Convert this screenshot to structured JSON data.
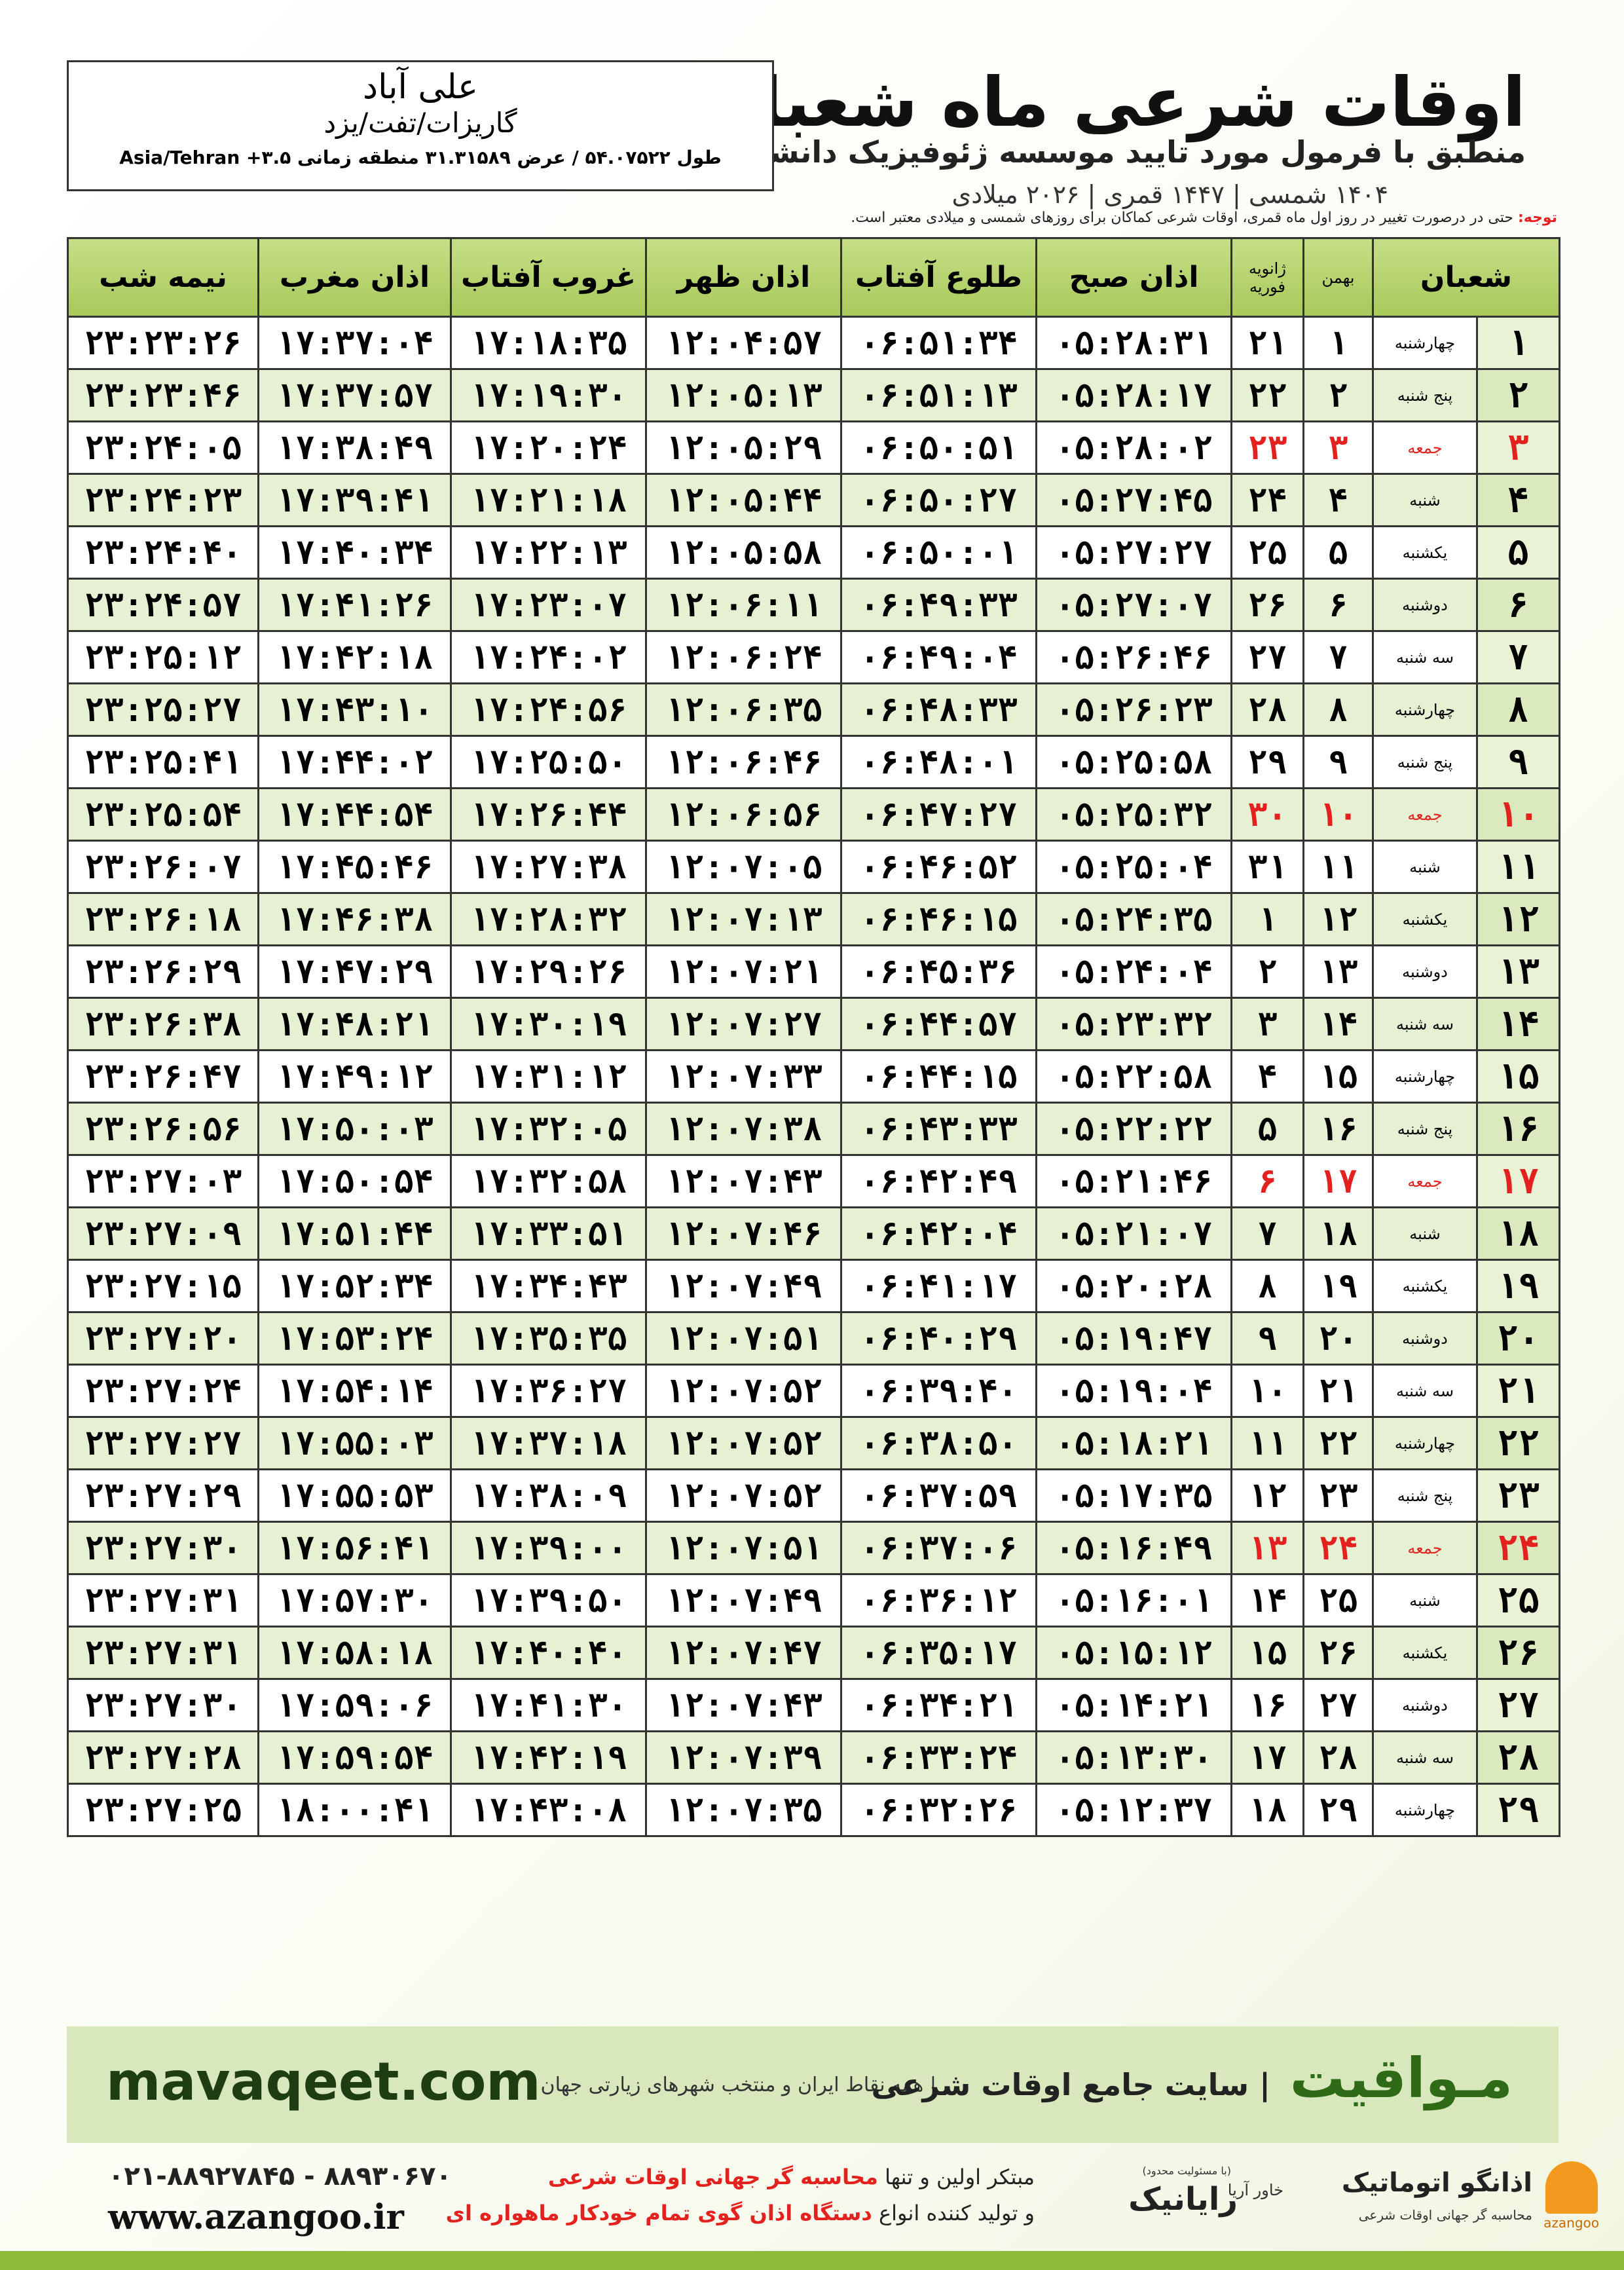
{
  "header": {
    "title": "اوقات شرعی ماه شعبان",
    "subtitle": "منطبق با فرمول مورد تایید موسسه ژئوفیزیک دانشگاه تهران",
    "dates": "۱۴۰۴ شمسی | ۱۴۴۷ قمری | ۲۰۲۶ میلادی"
  },
  "location": {
    "name": "علی آباد",
    "region": "گاریزات/تفت/یزد",
    "coords": "طول ۵۴.۰۷۵۲۲ / عرض ۳۱.۳۱۵۸۹ منطقه زمانی ۳.۵+ Asia/Tehran"
  },
  "note": {
    "label": "توجه:",
    "text": "حتی در درصورت تغییر در روز اول ماه قمری، اوقات شرعی کماکان برای روزهای شمسی و میلادی معتبر است."
  },
  "table": {
    "headers": {
      "month": "شعبان",
      "bahman": "بهمن",
      "gregorian": [
        "ژانویه",
        "فوریه"
      ],
      "times": [
        "اذان صبح",
        "طلوع آفتاب",
        "اذان ظهر",
        "غروب آفتاب",
        "اذان مغرب",
        "نیمه شب"
      ]
    },
    "holiday_color": "#e3221f",
    "rows": [
      {
        "day": "۱",
        "weekday": "چهارشنبه",
        "bahman": "۱",
        "gregorian": "۲۱",
        "times": [
          "۰۵:۲۸:۳۱",
          "۰۶:۵۱:۳۴",
          "۱۲:۰۴:۵۷",
          "۱۷:۱۸:۳۵",
          "۱۷:۳۷:۰۴",
          "۲۳:۲۳:۲۶"
        ]
      },
      {
        "day": "۲",
        "weekday": "پنج شنبه",
        "bahman": "۲",
        "gregorian": "۲۲",
        "times": [
          "۰۵:۲۸:۱۷",
          "۰۶:۵۱:۱۳",
          "۱۲:۰۵:۱۳",
          "۱۷:۱۹:۳۰",
          "۱۷:۳۷:۵۷",
          "۲۳:۲۳:۴۶"
        ]
      },
      {
        "day": "۳",
        "weekday": "جمعه",
        "bahman": "۳",
        "gregorian": "۲۳",
        "holiday": true,
        "times": [
          "۰۵:۲۸:۰۲",
          "۰۶:۵۰:۵۱",
          "۱۲:۰۵:۲۹",
          "۱۷:۲۰:۲۴",
          "۱۷:۳۸:۴۹",
          "۲۳:۲۴:۰۵"
        ]
      },
      {
        "day": "۴",
        "weekday": "شنبه",
        "bahman": "۴",
        "gregorian": "۲۴",
        "times": [
          "۰۵:۲۷:۴۵",
          "۰۶:۵۰:۲۷",
          "۱۲:۰۵:۴۴",
          "۱۷:۲۱:۱۸",
          "۱۷:۳۹:۴۱",
          "۲۳:۲۴:۲۳"
        ]
      },
      {
        "day": "۵",
        "weekday": "یکشنبه",
        "bahman": "۵",
        "gregorian": "۲۵",
        "times": [
          "۰۵:۲۷:۲۷",
          "۰۶:۵۰:۰۱",
          "۱۲:۰۵:۵۸",
          "۱۷:۲۲:۱۳",
          "۱۷:۴۰:۳۴",
          "۲۳:۲۴:۴۰"
        ]
      },
      {
        "day": "۶",
        "weekday": "دوشنبه",
        "bahman": "۶",
        "gregorian": "۲۶",
        "times": [
          "۰۵:۲۷:۰۷",
          "۰۶:۴۹:۳۳",
          "۱۲:۰۶:۱۱",
          "۱۷:۲۳:۰۷",
          "۱۷:۴۱:۲۶",
          "۲۳:۲۴:۵۷"
        ]
      },
      {
        "day": "۷",
        "weekday": "سه شنبه",
        "bahman": "۷",
        "gregorian": "۲۷",
        "times": [
          "۰۵:۲۶:۴۶",
          "۰۶:۴۹:۰۴",
          "۱۲:۰۶:۲۴",
          "۱۷:۲۴:۰۲",
          "۱۷:۴۲:۱۸",
          "۲۳:۲۵:۱۲"
        ]
      },
      {
        "day": "۸",
        "weekday": "چهارشنبه",
        "bahman": "۸",
        "gregorian": "۲۸",
        "times": [
          "۰۵:۲۶:۲۳",
          "۰۶:۴۸:۳۳",
          "۱۲:۰۶:۳۵",
          "۱۷:۲۴:۵۶",
          "۱۷:۴۳:۱۰",
          "۲۳:۲۵:۲۷"
        ]
      },
      {
        "day": "۹",
        "weekday": "پنج شنبه",
        "bahman": "۹",
        "gregorian": "۲۹",
        "times": [
          "۰۵:۲۵:۵۸",
          "۰۶:۴۸:۰۱",
          "۱۲:۰۶:۴۶",
          "۱۷:۲۵:۵۰",
          "۱۷:۴۴:۰۲",
          "۲۳:۲۵:۴۱"
        ]
      },
      {
        "day": "۱۰",
        "weekday": "جمعه",
        "bahman": "۱۰",
        "gregorian": "۳۰",
        "holiday": true,
        "times": [
          "۰۵:۲۵:۳۲",
          "۰۶:۴۷:۲۷",
          "۱۲:۰۶:۵۶",
          "۱۷:۲۶:۴۴",
          "۱۷:۴۴:۵۴",
          "۲۳:۲۵:۵۴"
        ]
      },
      {
        "day": "۱۱",
        "weekday": "شنبه",
        "bahman": "۱۱",
        "gregorian": "۳۱",
        "times": [
          "۰۵:۲۵:۰۴",
          "۰۶:۴۶:۵۲",
          "۱۲:۰۷:۰۵",
          "۱۷:۲۷:۳۸",
          "۱۷:۴۵:۴۶",
          "۲۳:۲۶:۰۷"
        ]
      },
      {
        "day": "۱۲",
        "weekday": "یکشنبه",
        "bahman": "۱۲",
        "gregorian": "۱",
        "times": [
          "۰۵:۲۴:۳۵",
          "۰۶:۴۶:۱۵",
          "۱۲:۰۷:۱۳",
          "۱۷:۲۸:۳۲",
          "۱۷:۴۶:۳۸",
          "۲۳:۲۶:۱۸"
        ]
      },
      {
        "day": "۱۳",
        "weekday": "دوشنبه",
        "bahman": "۱۳",
        "gregorian": "۲",
        "times": [
          "۰۵:۲۴:۰۴",
          "۰۶:۴۵:۳۶",
          "۱۲:۰۷:۲۱",
          "۱۷:۲۹:۲۶",
          "۱۷:۴۷:۲۹",
          "۲۳:۲۶:۲۹"
        ]
      },
      {
        "day": "۱۴",
        "weekday": "سه شنبه",
        "bahman": "۱۴",
        "gregorian": "۳",
        "times": [
          "۰۵:۲۳:۳۲",
          "۰۶:۴۴:۵۷",
          "۱۲:۰۷:۲۷",
          "۱۷:۳۰:۱۹",
          "۱۷:۴۸:۲۱",
          "۲۳:۲۶:۳۸"
        ]
      },
      {
        "day": "۱۵",
        "weekday": "چهارشنبه",
        "bahman": "۱۵",
        "gregorian": "۴",
        "times": [
          "۰۵:۲۲:۵۸",
          "۰۶:۴۴:۱۵",
          "۱۲:۰۷:۳۳",
          "۱۷:۳۱:۱۲",
          "۱۷:۴۹:۱۲",
          "۲۳:۲۶:۴۷"
        ]
      },
      {
        "day": "۱۶",
        "weekday": "پنج شنبه",
        "bahman": "۱۶",
        "gregorian": "۵",
        "times": [
          "۰۵:۲۲:۲۲",
          "۰۶:۴۳:۳۳",
          "۱۲:۰۷:۳۸",
          "۱۷:۳۲:۰۵",
          "۱۷:۵۰:۰۳",
          "۲۳:۲۶:۵۶"
        ]
      },
      {
        "day": "۱۷",
        "weekday": "جمعه",
        "bahman": "۱۷",
        "gregorian": "۶",
        "holiday": true,
        "times": [
          "۰۵:۲۱:۴۶",
          "۰۶:۴۲:۴۹",
          "۱۲:۰۷:۴۳",
          "۱۷:۳۲:۵۸",
          "۱۷:۵۰:۵۴",
          "۲۳:۲۷:۰۳"
        ]
      },
      {
        "day": "۱۸",
        "weekday": "شنبه",
        "bahman": "۱۸",
        "gregorian": "۷",
        "times": [
          "۰۵:۲۱:۰۷",
          "۰۶:۴۲:۰۴",
          "۱۲:۰۷:۴۶",
          "۱۷:۳۳:۵۱",
          "۱۷:۵۱:۴۴",
          "۲۳:۲۷:۰۹"
        ]
      },
      {
        "day": "۱۹",
        "weekday": "یکشنبه",
        "bahman": "۱۹",
        "gregorian": "۸",
        "times": [
          "۰۵:۲۰:۲۸",
          "۰۶:۴۱:۱۷",
          "۱۲:۰۷:۴۹",
          "۱۷:۳۴:۴۳",
          "۱۷:۵۲:۳۴",
          "۲۳:۲۷:۱۵"
        ]
      },
      {
        "day": "۲۰",
        "weekday": "دوشنبه",
        "bahman": "۲۰",
        "gregorian": "۹",
        "times": [
          "۰۵:۱۹:۴۷",
          "۰۶:۴۰:۲۹",
          "۱۲:۰۷:۵۱",
          "۱۷:۳۵:۳۵",
          "۱۷:۵۳:۲۴",
          "۲۳:۲۷:۲۰"
        ]
      },
      {
        "day": "۲۱",
        "weekday": "سه شنبه",
        "bahman": "۲۱",
        "gregorian": "۱۰",
        "times": [
          "۰۵:۱۹:۰۴",
          "۰۶:۳۹:۴۰",
          "۱۲:۰۷:۵۲",
          "۱۷:۳۶:۲۷",
          "۱۷:۵۴:۱۴",
          "۲۳:۲۷:۲۴"
        ]
      },
      {
        "day": "۲۲",
        "weekday": "چهارشنبه",
        "bahman": "۲۲",
        "gregorian": "۱۱",
        "times": [
          "۰۵:۱۸:۲۱",
          "۰۶:۳۸:۵۰",
          "۱۲:۰۷:۵۲",
          "۱۷:۳۷:۱۸",
          "۱۷:۵۵:۰۳",
          "۲۳:۲۷:۲۷"
        ]
      },
      {
        "day": "۲۳",
        "weekday": "پنج شنبه",
        "bahman": "۲۳",
        "gregorian": "۱۲",
        "times": [
          "۰۵:۱۷:۳۵",
          "۰۶:۳۷:۵۹",
          "۱۲:۰۷:۵۲",
          "۱۷:۳۸:۰۹",
          "۱۷:۵۵:۵۳",
          "۲۳:۲۷:۲۹"
        ]
      },
      {
        "day": "۲۴",
        "weekday": "جمعه",
        "bahman": "۲۴",
        "gregorian": "۱۳",
        "holiday": true,
        "times": [
          "۰۵:۱۶:۴۹",
          "۰۶:۳۷:۰۶",
          "۱۲:۰۷:۵۱",
          "۱۷:۳۹:۰۰",
          "۱۷:۵۶:۴۱",
          "۲۳:۲۷:۳۰"
        ]
      },
      {
        "day": "۲۵",
        "weekday": "شنبه",
        "bahman": "۲۵",
        "gregorian": "۱۴",
        "times": [
          "۰۵:۱۶:۰۱",
          "۰۶:۳۶:۱۲",
          "۱۲:۰۷:۴۹",
          "۱۷:۳۹:۵۰",
          "۱۷:۵۷:۳۰",
          "۲۳:۲۷:۳۱"
        ]
      },
      {
        "day": "۲۶",
        "weekday": "یکشنبه",
        "bahman": "۲۶",
        "gregorian": "۱۵",
        "times": [
          "۰۵:۱۵:۱۲",
          "۰۶:۳۵:۱۷",
          "۱۲:۰۷:۴۷",
          "۱۷:۴۰:۴۰",
          "۱۷:۵۸:۱۸",
          "۲۳:۲۷:۳۱"
        ]
      },
      {
        "day": "۲۷",
        "weekday": "دوشنبه",
        "bahman": "۲۷",
        "gregorian": "۱۶",
        "times": [
          "۰۵:۱۴:۲۱",
          "۰۶:۳۴:۲۱",
          "۱۲:۰۷:۴۳",
          "۱۷:۴۱:۳۰",
          "۱۷:۵۹:۰۶",
          "۲۳:۲۷:۳۰"
        ]
      },
      {
        "day": "۲۸",
        "weekday": "سه شنبه",
        "bahman": "۲۸",
        "gregorian": "۱۷",
        "times": [
          "۰۵:۱۳:۳۰",
          "۰۶:۳۳:۲۴",
          "۱۲:۰۷:۳۹",
          "۱۷:۴۲:۱۹",
          "۱۷:۵۹:۵۴",
          "۲۳:۲۷:۲۸"
        ]
      },
      {
        "day": "۲۹",
        "weekday": "چهارشنبه",
        "bahman": "۲۹",
        "gregorian": "۱۸",
        "times": [
          "۰۵:۱۲:۳۷",
          "۰۶:۳۲:۲۶",
          "۱۲:۰۷:۳۵",
          "۱۷:۴۳:۰۸",
          "۱۸:۰۰:۴۱",
          "۲۳:۲۷:۲۵"
        ]
      }
    ]
  },
  "banner": {
    "brand": "مـواقیت",
    "slogan": "| سایت جامع اوقات شرعی",
    "coverage": "| همه نقاط ایران و منتخب شهرهای زیارتی جهان",
    "site": "mavaqeet.com"
  },
  "footer": {
    "phones": "۰۲۱-۸۸۹۲۷۸۴۵ - ۸۸۹۳۰۶۷۰",
    "web": "www.azangoo.ir",
    "line1a": "مبتکر اولین و تنها",
    "line1b": "محاسبه گر جهانی اوقات شرعی",
    "line2a": "و تولید کننده انواع",
    "line2b": "دستگاه اذان گوی تمام خودکار ماهواره ای",
    "rayanik": "رایانیک",
    "khavar": "خاور آریا",
    "limited": "(با مسئولیت محدود)",
    "azangoo": "اذانگو اتوماتیک",
    "azangoo_sub": "محاسبه گر جهانی اوقات شرعی",
    "azangoo_en": "azangoo"
  }
}
